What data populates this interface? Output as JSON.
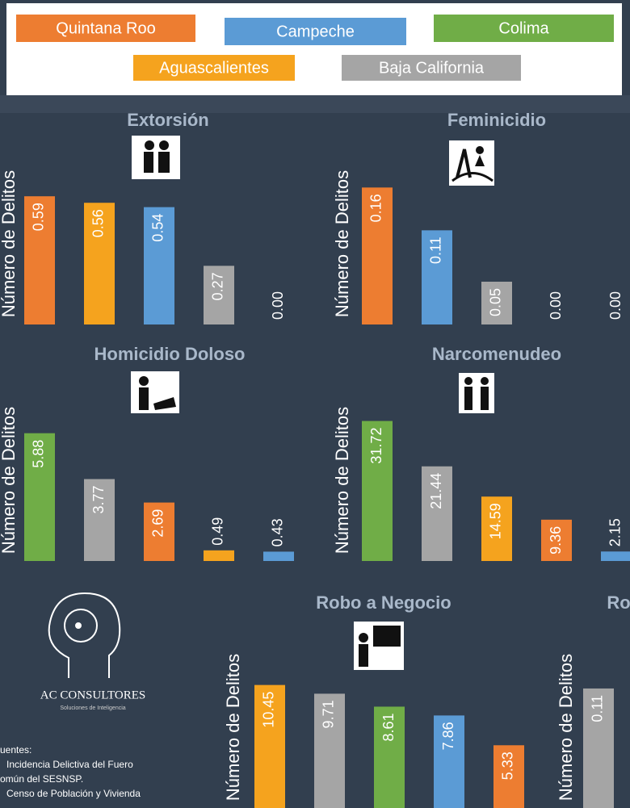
{
  "legend": [
    {
      "name": "Quintana Roo",
      "color": "#ed7d31"
    },
    {
      "name": "Campeche",
      "color": "#5b9bd5"
    },
    {
      "name": "Colima",
      "color": "#70ad47"
    },
    {
      "name": "Aguascalientes",
      "color": "#f5a31e"
    },
    {
      "name": "Baja California",
      "color": "#a5a5a5"
    }
  ],
  "chart_data": [
    {
      "type": "bar",
      "title": "Extorsión",
      "y_label": "Número de Delitos",
      "values": [
        0.59,
        0.56,
        0.54,
        0.27,
        0
      ],
      "value_labels": [
        "0.59",
        "0.56",
        "0.54",
        "0.27",
        "0.00"
      ],
      "colors": [
        "#ed7d31",
        "#f5a31e",
        "#5b9bd5",
        "#a5a5a5",
        null
      ],
      "ylim": [
        0,
        0.65
      ]
    },
    {
      "type": "bar",
      "title": "Feminicidio",
      "y_label": "Número de Delitos",
      "values": [
        0.16,
        0.11,
        0.05,
        0,
        0
      ],
      "value_labels": [
        "0.16",
        "0.11",
        "0.05",
        "0.00",
        "0.00"
      ],
      "colors": [
        "#ed7d31",
        "#5b9bd5",
        "#a5a5a5",
        null,
        null
      ],
      "ylim": [
        0,
        0.165
      ]
    },
    {
      "type": "bar",
      "title": "Homicidio Doloso",
      "y_label": "Número de Delitos",
      "values": [
        5.88,
        3.77,
        2.69,
        0.49,
        0.43
      ],
      "value_labels": [
        "5.88",
        "3.77",
        "2.69",
        "0.49",
        "0.43"
      ],
      "colors": [
        "#70ad47",
        "#a5a5a5",
        "#ed7d31",
        "#f5a31e",
        "#5b9bd5"
      ],
      "ylim": [
        0,
        6.5
      ]
    },
    {
      "type": "bar",
      "title": "Narcomenudeo",
      "y_label": "Número de Delitos",
      "values": [
        31.72,
        21.44,
        14.59,
        9.36,
        2.15
      ],
      "value_labels": [
        "31.72",
        "21.44",
        "14.59",
        "9.36",
        "2.15"
      ],
      "colors": [
        "#70ad47",
        "#a5a5a5",
        "#f5a31e",
        "#ed7d31",
        "#5b9bd5"
      ],
      "ylim": [
        0,
        32
      ]
    },
    {
      "type": "bar",
      "title": "Robo a Negocio",
      "y_label": "Número de Delitos",
      "values": [
        10.45,
        9.71,
        8.61,
        7.86,
        5.33
      ],
      "value_labels": [
        "10.45",
        "9.71",
        "8.61",
        "7.86",
        "5.33"
      ],
      "colors": [
        "#f5a31e",
        "#a5a5a5",
        "#70ad47",
        "#5b9bd5",
        "#ed7d31"
      ],
      "ylim": [
        0,
        12
      ]
    },
    {
      "type": "bar",
      "title": "Ro",
      "y_label": "Número de Delitos",
      "values": [
        0.11
      ],
      "value_labels": [
        "0.11"
      ],
      "colors": [
        "#a5a5a5"
      ],
      "ylim": [
        0,
        0.13
      ]
    }
  ],
  "brand": {
    "name": "AC CONSULTORES",
    "tagline": "Soluciones de Inteligencia"
  },
  "sources": [
    "uentes:",
    "Incidencia Delictiva del Fuero",
    "omún del SESNSP.",
    "Censo de Población y Vivienda"
  ]
}
